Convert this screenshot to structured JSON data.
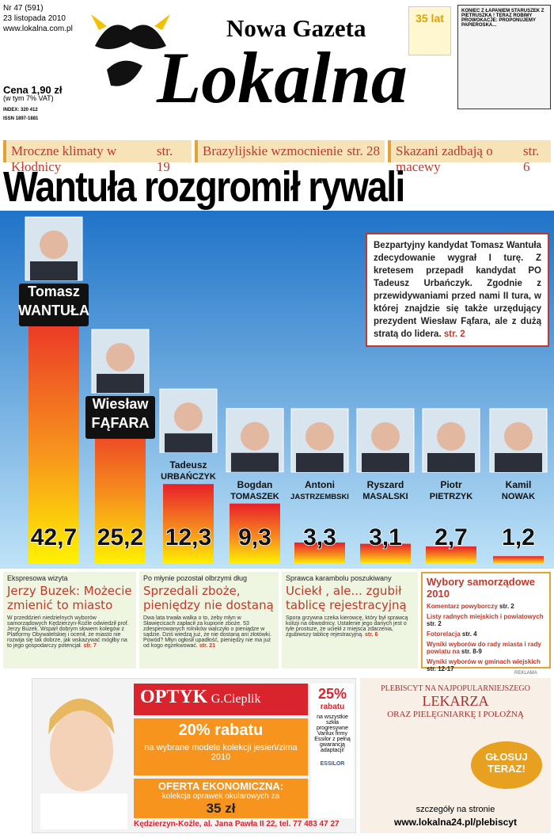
{
  "masthead": {
    "issue": "Nr 47 (591)",
    "date": "23 listopada 2010",
    "url": "www.lokalna.com.pl",
    "title_top": "Nowa Gazeta",
    "title_main": "Lokalna",
    "price": "Cena 1,90 zł",
    "vat": "(w tym 7% VAT)",
    "index": "INDEX: 320 412",
    "issn": "ISSN 1897-1881",
    "badge": "35 lat",
    "cartoon": "KONIEC Z ŁAPANIEM STARUSZEK Z PIETRUSZKĄ ! TERAZ ROBIMY PROWOKACJE: PROPONUJEMY PAPIEROSKA..."
  },
  "teasers": [
    {
      "text": "Mroczne klimaty w Kłodnicy",
      "page": "str. 19"
    },
    {
      "text": "Brazylijskie wzmocnienie",
      "page": "str. 28"
    },
    {
      "text": "Skazani zadbają o macewy",
      "page": "str. 6"
    }
  ],
  "headline": "Wantuła rozgromił rywali",
  "lead": {
    "text": "Bezpartyjny kandydat Tomasz Wantuła zdecydowanie wygrał I turę. Z kretesem przepadł kandydat PO Tadeusz Urbańczyk. Zgodnie z przewidywaniami przed nami II tura, w której znajdzie się także urzędujący prezydent Wiesław Fąfara, ale z dużą stratą do lidera.",
    "page": "str. 2"
  },
  "election": {
    "first_names": [
      "Tomasz",
      "Wiesław",
      "Tadeusz",
      "Bogdan",
      "Antoni",
      "Ryszard",
      "Piotr",
      "Kamil"
    ],
    "last_names": [
      "WANTUŁA",
      "FĄFARA",
      "URBAŃCZYK",
      "TOMASZEK",
      "JASTRZEMBSKI",
      "MASALSKI",
      "PIETRZYK",
      "NOWAK"
    ],
    "values": [
      42.7,
      25.2,
      12.3,
      9.3,
      3.3,
      3.1,
      2.7,
      1.2
    ],
    "value_labels": [
      "42,7",
      "25,2",
      "12,3",
      "9,3",
      "3,3",
      "3,1",
      "2,7",
      "1,2"
    ]
  },
  "news": [
    {
      "kicker": "Ekspresowa wizyta",
      "title": "Jerzy Buzek: Możecie zmienić to miasto",
      "body": "W przeddzień niedzielnych wyborów samorządowych Kędzierzyn-Koźle odwiedził prof. Jerzy Buzek. Wsparł dobrym słowem kolegów z Platformy Obywatelskiej i ocenił, że miasto nie rozwija się tak dobrze, jak wskazywać mógłby na to jego gospodarczy potencjał.",
      "page": "str. 7"
    },
    {
      "kicker": "Po młynie pozostał olbrzymi dług",
      "title": "Sprzedali zboże, pieniędzy nie dostaną",
      "body": "Dwa lata trwała walka o to, żeby młyn w Sławięcicach zapłacił za kupione zboże. 53 zdesperowanych rolników walczyło o pieniądze w sądzie. Dziś wiedzą już, że nie dostaną ani złotówki. Powód? Młyn ogłosił upadłość, pieniędzy nie ma już od kogo egzekwować.",
      "page": "str. 21"
    },
    {
      "kicker": "Sprawca karambolu poszukiwany",
      "title": "Uciekł , ale... zgubił tablicę rejestracyjną",
      "body": "Spora grzywna czeka kierowcę, który był sprawcą kolizji na obwodnicy. Ustalenie jego danych jest o tyle prostsze, że uciekł z miejsca zdarzenia, zgubiwszy tablicę rejestracyjną.",
      "page": "str. 6"
    }
  ],
  "elections_box": {
    "title": "Wybory samorządowe 2010",
    "items": [
      {
        "text": "Komentarz powyborczy",
        "page": "str. 2"
      },
      {
        "text": "Listy radnych miejskich i powiatowych",
        "page": "str. 2"
      },
      {
        "text": "Fotorelacja",
        "page": "str. 4"
      },
      {
        "text": "Wyniki wyborów do rady miasta i rady powiatu na",
        "page": "str. 8-9"
      },
      {
        "text": "Wyniki wyborów w gminach wiejskich",
        "page": "str. 12-17"
      }
    ]
  },
  "ad": {
    "label": "REKLAMA",
    "brand": "OPTYK",
    "owner": "G.Cieplik",
    "discount": "20% rabatu",
    "discount_text": "na wybrane modele kolekcji jesień/zima 2010",
    "offer": "OFERTA EKONOMICZNA:",
    "offer_text": "kolekcja oprawek okularowych za",
    "offer_price": "35 zł",
    "side_pct": "25%",
    "side_rabat": "rabatu",
    "side_text": "na wszystkie szkła progresywne Varilux firmy Essilor z pełną gwarancją adaptacji!",
    "essilor": "ESSILOR",
    "address": "Kędzierzyn-Koźle, al. Jana Pawła II 22, tel. 77 483 47 27"
  },
  "plebiscite": {
    "line1": "PLEBISCYT NA NAJPOPULARNIEJSZEGO",
    "line2": "LEKARZA",
    "line3": "ORAZ PIELĘGNIARKĘ I POŁOŻNĄ",
    "vote": "GŁOSUJ TERAZ!",
    "details": "szczegóły na stronie",
    "url": "www.lokalna24.pl/plebiscyt"
  }
}
